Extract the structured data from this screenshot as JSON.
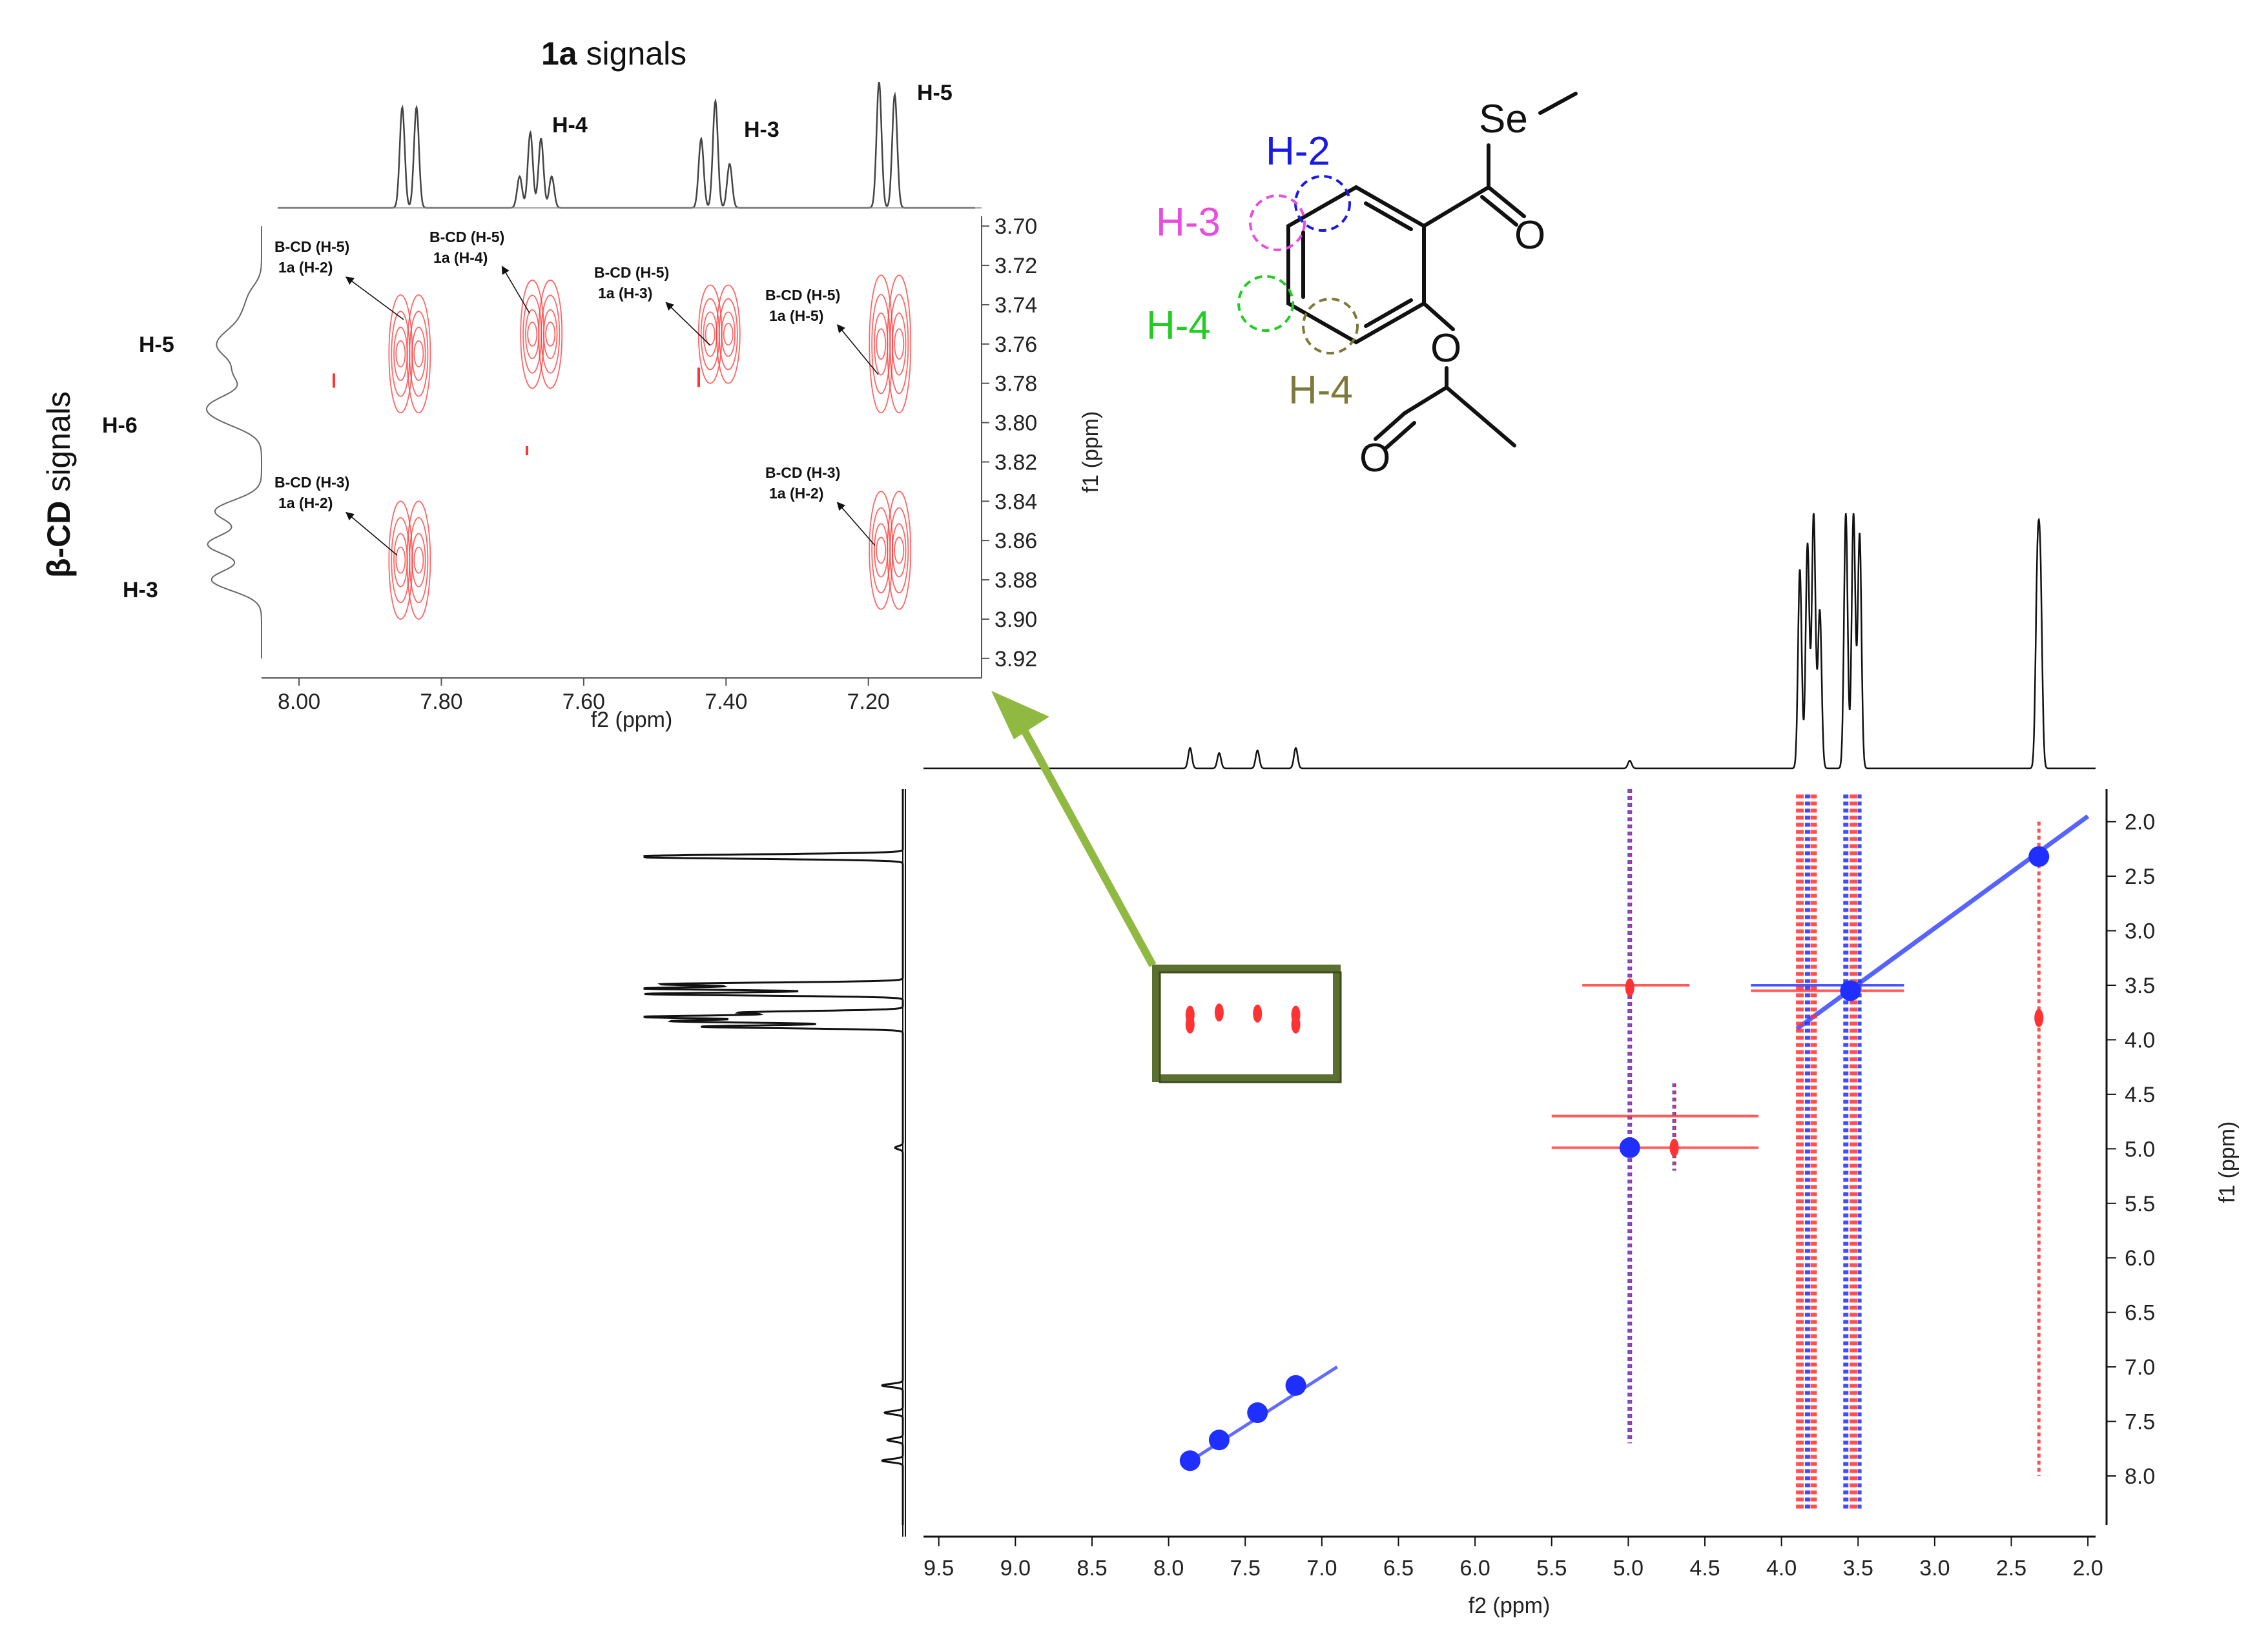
{
  "colors": {
    "positive": "#ff3333",
    "negative": "#1f2fff",
    "axis": "#222222",
    "trace": "#111111",
    "zoom_box": "#5b7030",
    "arrow": "#8fb940",
    "h2": "#1a1ae6",
    "h3": "#e84ce0",
    "h4a": "#22cc22",
    "h4b": "#7c7a3a"
  },
  "chart_data": [
    {
      "type": "heatmap",
      "subtype": "2D NMR (ROESY) contour plot",
      "xlabel": "f2 (ppm)",
      "ylabel": "f1 (ppm)",
      "xlim": [
        9.6,
        1.95
      ],
      "ylim": [
        1.7,
        8.45
      ],
      "x_ticks": [
        "9.5",
        "9.0",
        "8.5",
        "8.0",
        "7.5",
        "7.0",
        "6.5",
        "6.0",
        "5.5",
        "5.0",
        "4.5",
        "4.0",
        "3.5",
        "3.0",
        "2.5",
        "2.0"
      ],
      "y_ticks": [
        "2.0",
        "2.5",
        "3.0",
        "3.5",
        "4.0",
        "4.5",
        "5.0",
        "5.5",
        "6.0",
        "6.5",
        "7.0",
        "7.5",
        "8.0"
      ],
      "top_projection_peaks": [
        {
          "ppm": 7.86,
          "h": 0.08
        },
        {
          "ppm": 7.67,
          "h": 0.06
        },
        {
          "ppm": 7.42,
          "h": 0.07
        },
        {
          "ppm": 7.17,
          "h": 0.08
        },
        {
          "ppm": 4.99,
          "h": 0.03
        },
        {
          "ppm": 3.88,
          "h": 0.78
        },
        {
          "ppm": 3.83,
          "h": 0.88
        },
        {
          "ppm": 3.79,
          "h": 1.0
        },
        {
          "ppm": 3.75,
          "h": 0.62
        },
        {
          "ppm": 3.58,
          "h": 1.0
        },
        {
          "ppm": 3.53,
          "h": 1.0
        },
        {
          "ppm": 3.49,
          "h": 0.92
        },
        {
          "ppm": 2.33,
          "h": 0.7
        },
        {
          "ppm": 2.31,
          "h": 0.68
        }
      ],
      "cross_peaks_positive": [
        {
          "x": 7.86,
          "y": 3.77
        },
        {
          "x": 7.86,
          "y": 3.86
        },
        {
          "x": 7.67,
          "y": 3.75
        },
        {
          "x": 7.42,
          "y": 3.76
        },
        {
          "x": 7.17,
          "y": 3.77
        },
        {
          "x": 7.17,
          "y": 3.86
        },
        {
          "x": 4.99,
          "y": 3.52
        },
        {
          "x": 4.7,
          "y": 4.99
        },
        {
          "x": 2.32,
          "y": 3.8
        }
      ],
      "cross_peaks_negative": [
        {
          "x": 7.86,
          "y": 7.86
        },
        {
          "x": 7.67,
          "y": 7.67
        },
        {
          "x": 7.42,
          "y": 7.42
        },
        {
          "x": 7.17,
          "y": 7.17
        },
        {
          "x": 4.99,
          "y": 4.99
        },
        {
          "x": 3.55,
          "y": 3.55
        },
        {
          "x": 2.32,
          "y": 2.32
        }
      ]
    },
    {
      "type": "heatmap",
      "subtype": "2D NMR zoom (expansion)",
      "xlabel": "f2 (ppm)",
      "ylabel": "f1 (ppm)",
      "xlim": [
        8.03,
        7.05
      ],
      "ylim": [
        3.695,
        3.925
      ],
      "x_ticks": [
        "8.00",
        "7.80",
        "7.60",
        "7.40",
        "7.20"
      ],
      "y_ticks": [
        "3.70",
        "3.72",
        "3.74",
        "3.76",
        "3.78",
        "3.80",
        "3.82",
        "3.84",
        "3.86",
        "3.88",
        "3.90",
        "3.92"
      ],
      "top_projection_title": "signals",
      "top_projection_title_bold": "1a",
      "top_peak_labels": [
        {
          "text": "H-4",
          "ppm": 7.64
        },
        {
          "text": "H-3",
          "ppm": 7.35
        },
        {
          "text": "H-5",
          "ppm": 7.15
        }
      ],
      "left_projection_title": "signals",
      "left_projection_title_bold": "β-CD",
      "left_peak_labels": [
        {
          "text": "H-5",
          "ppm": 3.76
        },
        {
          "text": "H-6",
          "ppm": 3.8
        },
        {
          "text": "H-3",
          "ppm": 3.878
        }
      ],
      "annotations": [
        {
          "line1": "B-CD (H-5)",
          "line2": "1a (H-2)",
          "x": 7.86,
          "y": 3.76
        },
        {
          "line1": "B-CD (H-5)",
          "line2": "1a (H-4)",
          "x": 7.67,
          "y": 3.75
        },
        {
          "line1": "B-CD (H-5)",
          "line2": "1a (H-3)",
          "x": 7.42,
          "y": 3.76
        },
        {
          "line1": "B-CD (H-5)",
          "line2": "1a (H-5)",
          "x": 7.17,
          "y": 3.77
        },
        {
          "line1": "B-CD (H-3)",
          "line2": "1a (H-2)",
          "x": 7.86,
          "y": 3.865
        },
        {
          "line1": "B-CD (H-3)",
          "line2": "1a (H-2)",
          "x": 7.17,
          "y": 3.865
        }
      ],
      "contours": [
        {
          "x": 7.85,
          "y": 3.765,
          "h": 0.06
        },
        {
          "x": 7.85,
          "y": 3.87,
          "h": 0.06
        },
        {
          "x": 7.665,
          "y": 3.755,
          "h": 0.055
        },
        {
          "x": 7.415,
          "y": 3.755,
          "h": 0.05
        },
        {
          "x": 7.175,
          "y": 3.76,
          "h": 0.07
        },
        {
          "x": 7.175,
          "y": 3.865,
          "h": 0.06
        }
      ]
    }
  ],
  "molecule": {
    "atoms": [
      "Se",
      "O",
      "O",
      "O"
    ],
    "proton_labels": [
      "H-2",
      "H-3",
      "H-4",
      "H-4"
    ]
  }
}
